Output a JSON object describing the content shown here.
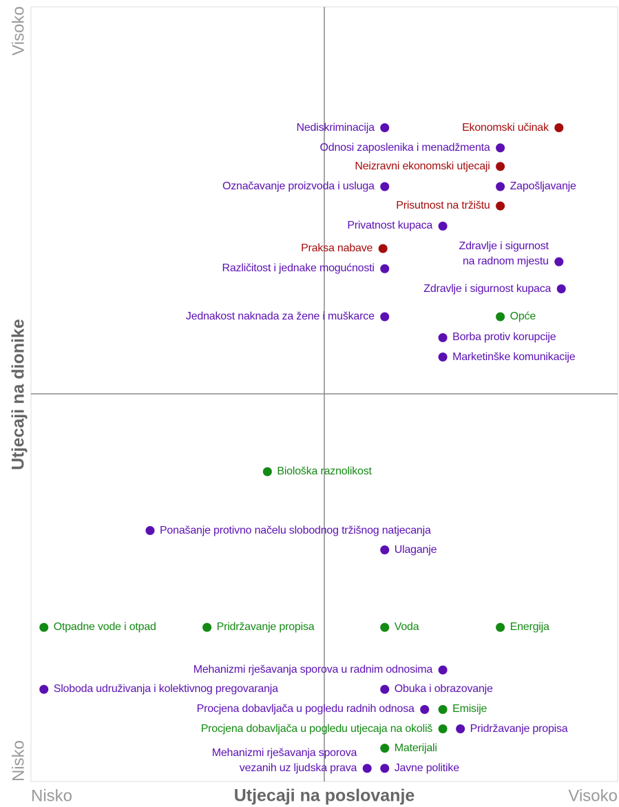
{
  "chart_data": {
    "type": "scatter",
    "x_axis_label": "Utjecaji na poslovanje",
    "y_axis_label": "Utjecaji na dionike",
    "x_low_label": "Nisko",
    "x_high_label": "Visoko",
    "y_low_label": "Nisko",
    "y_high_label": "Visoko",
    "xlim": [
      0,
      10
    ],
    "ylim": [
      0,
      10
    ],
    "series": [
      {
        "color": "#a50d0d",
        "labels": [
          "Ekonomski učinak",
          "Neizravni ekonomski utjecaji",
          "Prisutnost na tržištu",
          "Praksa nabave"
        ],
        "x": [
          9.0,
          8.0,
          8.0,
          6.0
        ],
        "values": [
          8.44,
          7.94,
          7.43,
          6.88
        ],
        "label_side": [
          "left",
          "left",
          "left",
          "left"
        ]
      },
      {
        "color": "#5b10b3",
        "labels": [
          "Nediskriminacija",
          "Odnosi zaposlenika i menadžmenta",
          "Označavanje proizvoda i usluga",
          "Zapošljavanje",
          "Privatnost kupaca",
          "Zdravlje i sigurnost\nna radnom mjestu",
          "Različitost i jednake mogućnosti",
          "Zdravlje i sigurnost kupaca",
          "Jednakost naknada za žene i muškarce",
          "Borba protiv korupcije",
          "Marketinške komunikacije",
          "Ponašanje protivno načelu slobodnog tržišnog natjecanja",
          "Ulaganje",
          "Mehanizmi rješavanja sporova u radnim odnosima",
          "Sloboda udruživanja i kolektivnog pregovaranja",
          "Obuka i obrazovanje",
          "Procjena dobavljača u pogledu radnih odnosa",
          "Pridržavanje propisa",
          "Mehanizmi rješavanja sporova\nvezanih uz ljudska prava",
          "Javne politike"
        ],
        "x": [
          6.03,
          8.0,
          6.03,
          8.0,
          7.02,
          9.0,
          6.03,
          9.04,
          6.03,
          7.02,
          7.02,
          2.03,
          6.03,
          7.02,
          0.22,
          6.03,
          6.71,
          7.32,
          5.73,
          6.03
        ],
        "values": [
          8.44,
          8.18,
          7.68,
          7.68,
          7.17,
          6.71,
          6.62,
          6.36,
          6.0,
          5.73,
          5.48,
          3.24,
          2.99,
          1.44,
          1.19,
          1.19,
          0.93,
          0.68,
          0.17,
          0.17
        ],
        "label_side": [
          "left",
          "left",
          "left",
          "right",
          "left",
          "left",
          "left",
          "left",
          "left",
          "right",
          "right",
          "right",
          "right",
          "left",
          "right",
          "right",
          "left",
          "right",
          "left",
          "right"
        ]
      },
      {
        "color": "#138a13",
        "labels": [
          "Opće",
          "Biološka raznolikost",
          "Otpadne vode i otpad",
          "Pridržavanje propisa",
          "Voda",
          "Energija",
          "Emisije",
          "Procjena dobavljača u pogledu utjecaja na okoliš",
          "Materijali"
        ],
        "x": [
          8.0,
          4.03,
          0.22,
          3.0,
          6.03,
          8.0,
          7.02,
          7.02,
          6.03
        ],
        "values": [
          6.0,
          4.0,
          1.99,
          1.99,
          1.99,
          1.99,
          0.93,
          0.68,
          0.43
        ],
        "label_side": [
          "right",
          "right",
          "right",
          "right",
          "right",
          "right",
          "right",
          "left",
          "right"
        ]
      }
    ]
  }
}
